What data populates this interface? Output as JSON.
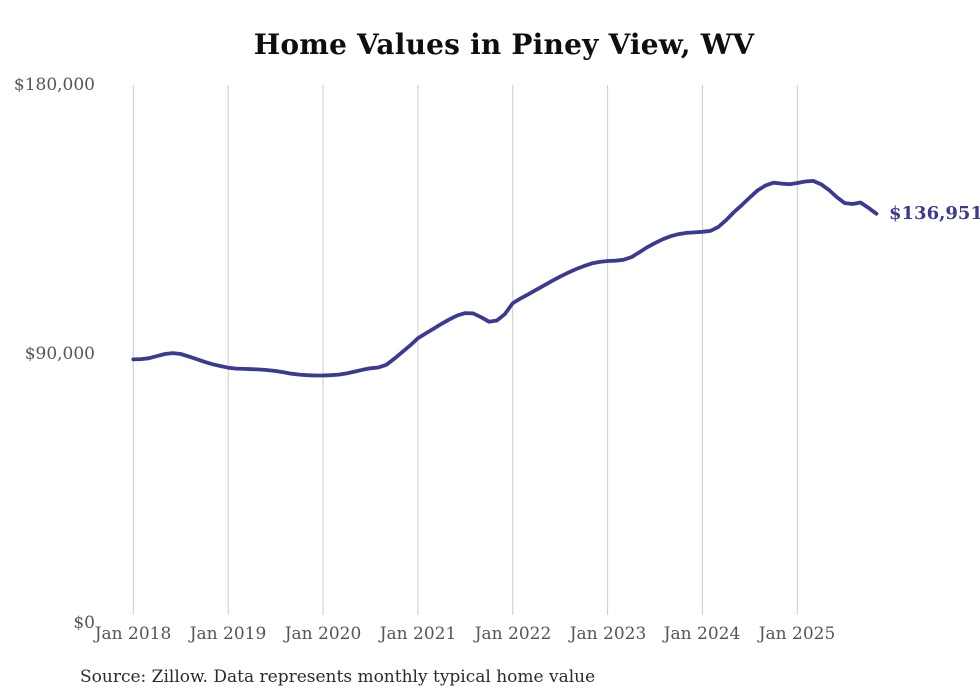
{
  "page": {
    "title": "Home Values in Piney View, WV",
    "source_note": "Source: Zillow. Data represents monthly typical home value"
  },
  "chart_data": {
    "type": "line",
    "title": "Home Values in Piney View, WV",
    "xlabel": "",
    "ylabel": "",
    "x_start": "2018-01",
    "x_end": "2025-11",
    "x_interval": "monthly",
    "n_points": 95,
    "ylim": [
      0,
      180000
    ],
    "grid": "vertical-only",
    "legend": "none",
    "x_ticks": [
      "Jan 2018",
      "Jan 2019",
      "Jan 2020",
      "Jan 2021",
      "Jan 2022",
      "Jan 2023",
      "Jan 2024",
      "Jan 2025"
    ],
    "x_tick_month_indices": [
      0,
      12,
      24,
      36,
      48,
      60,
      72,
      84
    ],
    "y_ticks": [
      {
        "value": 180000,
        "label": "$180,000"
      },
      {
        "value": 90000,
        "label": "$90,000"
      },
      {
        "value": 0,
        "label": "$0"
      }
    ],
    "series": [
      {
        "name": "Typical home value",
        "values": [
          88200,
          88300,
          88600,
          89300,
          90000,
          90300,
          90000,
          89200,
          88300,
          87400,
          86600,
          86000,
          85400,
          85100,
          85000,
          84900,
          84800,
          84600,
          84300,
          83900,
          83400,
          83100,
          82900,
          82800,
          82800,
          82900,
          83100,
          83500,
          84100,
          84700,
          85200,
          85500,
          86400,
          88400,
          90600,
          92800,
          95300,
          96900,
          98500,
          100100,
          101600,
          102900,
          103700,
          103600,
          102300,
          100800,
          101200,
          103300,
          107000,
          108600,
          110000,
          111500,
          113000,
          114500,
          115900,
          117200,
          118400,
          119400,
          120300,
          120800,
          121100,
          121200,
          121500,
          122400,
          124000,
          125700,
          127100,
          128400,
          129400,
          130100,
          130500,
          130700,
          130900,
          131200,
          132500,
          134800,
          137500,
          139900,
          142400,
          144800,
          146400,
          147300,
          147000,
          146800,
          147200,
          147700,
          147900,
          146800,
          144900,
          142500,
          140500,
          140200,
          140700,
          138900,
          136951
        ]
      }
    ],
    "current_value": 136951,
    "current_value_label": "$136,951",
    "colors": {
      "line": "#3b3a92",
      "annotation": "#3b3a92",
      "grid": "#cbcbcb",
      "tick_text": "#555555"
    }
  }
}
